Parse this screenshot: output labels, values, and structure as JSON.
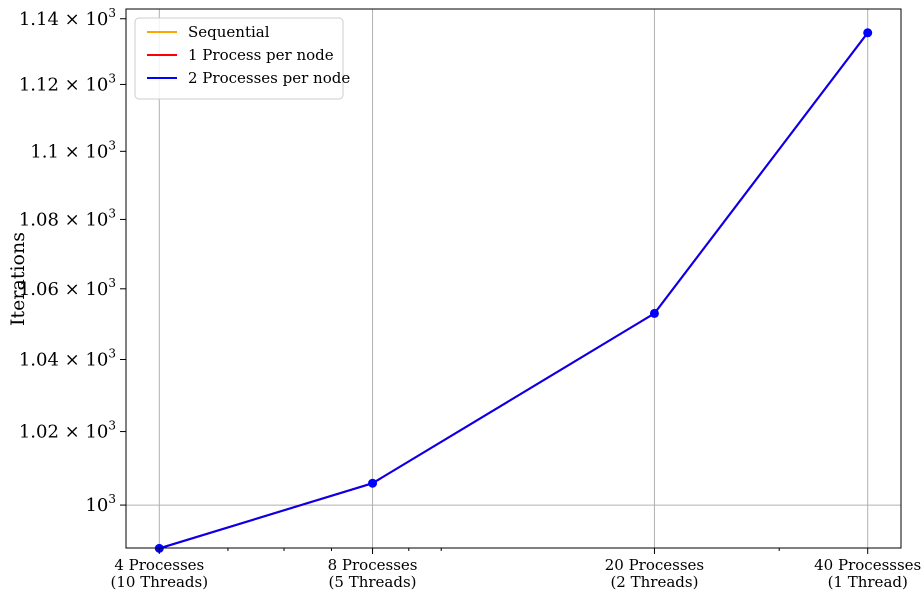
{
  "chart_data": {
    "type": "line",
    "ylabel": "Iterations",
    "xlabel": "",
    "yscale": "log",
    "ylim": [
      988.5,
      1143.0
    ],
    "grid": true,
    "legend_position": "top-left",
    "x_ticks": [
      {
        "value": 4,
        "line1": "4 Processes",
        "line2": "(10 Threads)"
      },
      {
        "value": 8,
        "line1": "8 Processes",
        "line2": "(5 Threads)"
      },
      {
        "value": 20,
        "line1": "20 Processes",
        "line2": "(2 Threads)"
      },
      {
        "value": 40,
        "line1": "40 Processses",
        "line2": "(1 Thread)"
      }
    ],
    "y_ticks": [
      {
        "value": 1000,
        "mantissa": "",
        "exp": "3"
      },
      {
        "value": 1020,
        "mantissa": "1.02",
        "exp": "3"
      },
      {
        "value": 1040,
        "mantissa": "1.04",
        "exp": "3"
      },
      {
        "value": 1060,
        "mantissa": "1.06",
        "exp": "3"
      },
      {
        "value": 1080,
        "mantissa": "1.08",
        "exp": "3"
      },
      {
        "value": 1100,
        "mantissa": "1.1",
        "exp": "3"
      },
      {
        "value": 1120,
        "mantissa": "1.12",
        "exp": "3"
      },
      {
        "value": 1140,
        "mantissa": "1.14",
        "exp": "3"
      }
    ],
    "x": [
      4,
      8,
      20,
      40
    ],
    "series": [
      {
        "name": "Sequential",
        "color": "#ffa500",
        "values": [
          988.4,
          1005.9,
          1053.0,
          1135.7
        ]
      },
      {
        "name": "1 Process per node",
        "color": "#ff0000",
        "values": [
          988.4,
          1005.9,
          1053.0,
          1135.7
        ]
      },
      {
        "name": "2 Processes per node",
        "color": "#0000ff",
        "values": [
          988.4,
          1005.9,
          1053.0,
          1135.7
        ]
      }
    ]
  }
}
